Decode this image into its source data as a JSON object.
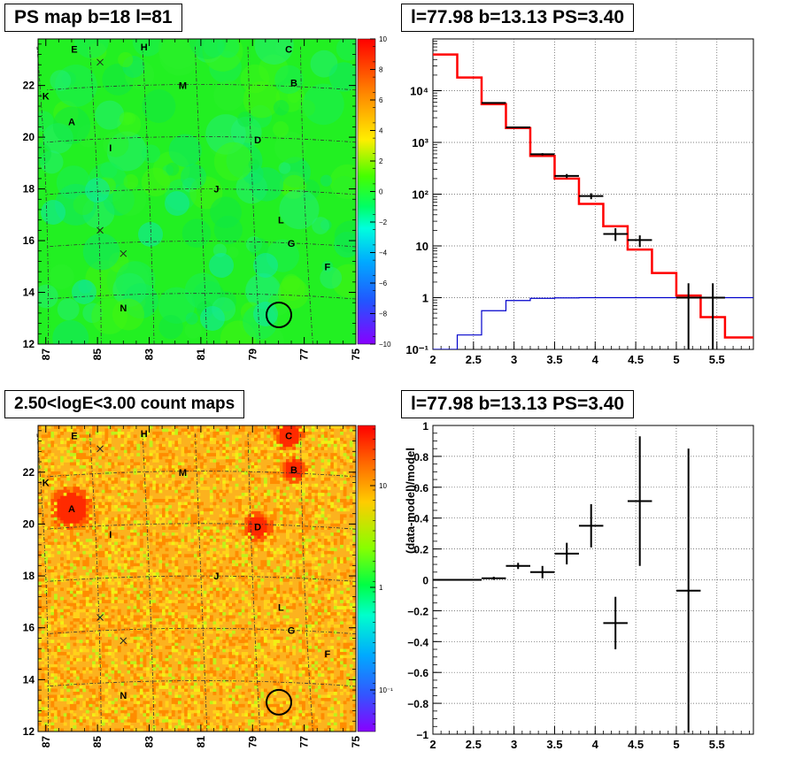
{
  "panels": {
    "ps_map": {
      "title": "PS map b=18 l=81",
      "x_ticks": [
        "87",
        "85",
        "83",
        "81",
        "79",
        "77",
        "75"
      ],
      "y_ticks": [
        "12",
        "14",
        "16",
        "18",
        "20",
        "22"
      ],
      "colorbar_ticks": [
        "10",
        "8",
        "6",
        "4",
        "2",
        "0",
        "−2",
        "−4",
        "−6",
        "−8",
        "−10"
      ]
    },
    "count_map": {
      "title": "2.50<logE<3.00 count maps",
      "x_ticks": [
        "87",
        "85",
        "83",
        "81",
        "79",
        "77",
        "75"
      ],
      "y_ticks": [
        "12",
        "14",
        "16",
        "18",
        "20",
        "22"
      ],
      "colorbar_ticks": [
        "10",
        "1",
        "10⁻¹"
      ]
    },
    "spectrum": {
      "title": "l=77.98 b=13.13 PS=3.40"
    },
    "residual": {
      "title": "l=77.98 b=13.13 PS=3.40",
      "ylabel": "(data-model)/model"
    }
  },
  "source_labels": [
    {
      "name": "E",
      "l": 85.9,
      "b": 23.4
    },
    {
      "name": "H",
      "l": 83.2,
      "b": 23.5
    },
    {
      "name": "C",
      "l": 77.6,
      "b": 23.4
    },
    {
      "name": "K",
      "l": 87.0,
      "b": 21.6
    },
    {
      "name": "M",
      "l": 81.7,
      "b": 22.0
    },
    {
      "name": "B",
      "l": 77.4,
      "b": 22.1
    },
    {
      "name": "A",
      "l": 86.0,
      "b": 20.6
    },
    {
      "name": "I",
      "l": 84.5,
      "b": 19.6
    },
    {
      "name": "D",
      "l": 78.8,
      "b": 19.9
    },
    {
      "name": "J",
      "l": 80.4,
      "b": 18.0
    },
    {
      "name": "L",
      "l": 77.9,
      "b": 16.8
    },
    {
      "name": "G",
      "l": 77.5,
      "b": 15.9
    },
    {
      "name": "F",
      "l": 76.1,
      "b": 15.0
    },
    {
      "name": "N",
      "l": 84.0,
      "b": 13.4
    }
  ],
  "cross_markers": [
    {
      "l": 84.9,
      "b": 22.9
    },
    {
      "l": 84.9,
      "b": 16.4
    },
    {
      "l": 84.0,
      "b": 15.5
    }
  ],
  "circle": {
    "l": 77.98,
    "b": 13.13
  },
  "chart_data": [
    {
      "type": "line",
      "panel": "spectrum",
      "title": "l=77.98 b=13.13 PS=3.40",
      "xlabel": "",
      "ylabel": "",
      "xlim": [
        2.0,
        5.95
      ],
      "ylim": [
        0.1,
        100000
      ],
      "y_log": true,
      "grid": true,
      "x_ticks": [
        "2",
        "2.5",
        "3",
        "3.5",
        "4",
        "4.5",
        "5",
        "5.5"
      ],
      "y_ticks": [
        "10⁻¹",
        "1",
        "10",
        "10²",
        "10³",
        "10⁴"
      ],
      "bin_edges": [
        2.0,
        2.3,
        2.6,
        2.9,
        3.2,
        3.5,
        3.8,
        4.1,
        4.4,
        4.7,
        5.0,
        5.3,
        5.6,
        5.95
      ],
      "model_total": [
        50000,
        18000,
        5500,
        1900,
        550,
        200,
        65,
        24,
        8.5,
        3.0,
        1.1,
        0.42,
        0.17
      ],
      "model_source": [
        0.09,
        0.19,
        0.56,
        0.88,
        0.97,
        0.99,
        1.0,
        1.0,
        1.0,
        1.0,
        1.0,
        1.0,
        1.0
      ],
      "data_points": [
        {
          "x": 2.75,
          "y": 5800,
          "xerr": 0.15,
          "ylo": 5700,
          "yhi": 5900
        },
        {
          "x": 3.05,
          "y": 1950,
          "xerr": 0.15,
          "ylo": 1900,
          "yhi": 2000
        },
        {
          "x": 3.35,
          "y": 590,
          "xerr": 0.15,
          "ylo": 560,
          "yhi": 620
        },
        {
          "x": 3.65,
          "y": 225,
          "xerr": 0.15,
          "ylo": 205,
          "yhi": 245
        },
        {
          "x": 3.95,
          "y": 92,
          "xerr": 0.15,
          "ylo": 80,
          "yhi": 104
        },
        {
          "x": 4.25,
          "y": 17,
          "xerr": 0.15,
          "ylo": 12.5,
          "yhi": 22
        },
        {
          "x": 4.55,
          "y": 13,
          "xerr": 0.15,
          "ylo": 9.5,
          "yhi": 16
        },
        {
          "x": 5.15,
          "y": 1.0,
          "xerr": 0.15,
          "ylo": 0.1,
          "yhi": 1.9
        },
        {
          "x": 5.45,
          "y": 1.0,
          "xerr": 0.15,
          "ylo": 0.1,
          "yhi": 1.9
        }
      ]
    },
    {
      "type": "scatter",
      "panel": "residual",
      "title": "l=77.98 b=13.13 PS=3.40",
      "xlabel": "",
      "ylabel": "(data-model)/model",
      "xlim": [
        2.0,
        5.95
      ],
      "ylim": [
        -1.0,
        1.0
      ],
      "grid": true,
      "x_ticks": [
        "2",
        "2.5",
        "3",
        "3.5",
        "4",
        "4.5",
        "5",
        "5.5"
      ],
      "y_ticks": [
        "−1",
        "−0.8",
        "−0.6",
        "−0.4",
        "−0.2",
        "0",
        "0.2",
        "0.4",
        "0.6",
        "0.8",
        "1"
      ],
      "points": [
        {
          "x": 2.15,
          "y": 0.0,
          "xerr": 0.15,
          "yerr": 0.003
        },
        {
          "x": 2.45,
          "y": 0.0,
          "xerr": 0.15,
          "yerr": 0.005
        },
        {
          "x": 2.75,
          "y": 0.01,
          "xerr": 0.15,
          "yerr": 0.01
        },
        {
          "x": 3.05,
          "y": 0.09,
          "xerr": 0.15,
          "yerr": 0.02
        },
        {
          "x": 3.35,
          "y": 0.05,
          "xerr": 0.15,
          "yerr": 0.04
        },
        {
          "x": 3.65,
          "y": 0.17,
          "xerr": 0.15,
          "yerr": 0.07
        },
        {
          "x": 3.95,
          "y": 0.35,
          "xerr": 0.15,
          "yerr": 0.14
        },
        {
          "x": 4.25,
          "y": -0.28,
          "xerr": 0.15,
          "yerr": 0.17
        },
        {
          "x": 4.55,
          "y": 0.51,
          "xerr": 0.15,
          "yerr": 0.42
        },
        {
          "x": 5.15,
          "y": -0.07,
          "xerr": 0.15,
          "yerr": 0.92
        }
      ]
    }
  ]
}
